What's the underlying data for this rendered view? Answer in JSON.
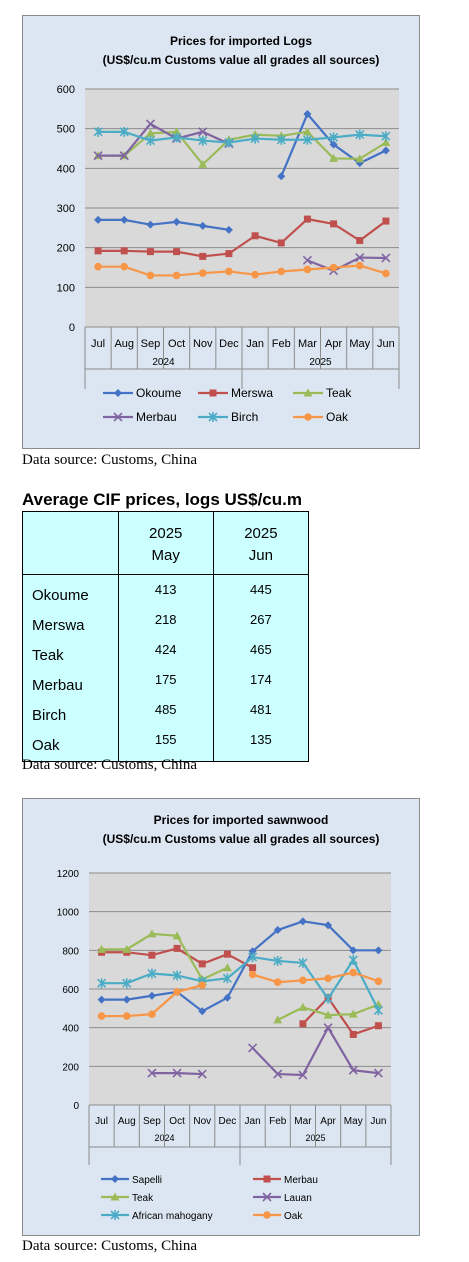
{
  "logs_chart": {
    "title_line1": "Prices for imported Logs",
    "title_line2": "(US$/cu.m Customs value all grades all sources)",
    "months": [
      "Jul",
      "Aug",
      "Sep",
      "Oct",
      "Nov",
      "Dec",
      "Jan",
      "Feb",
      "Mar",
      "Apr",
      "May",
      "Jun"
    ],
    "years": [
      "2024",
      "2025"
    ],
    "y_ticks": [
      "0",
      "100",
      "200",
      "300",
      "400",
      "500",
      "600"
    ]
  },
  "sawn_chart": {
    "title_line1": "Prices for imported sawnwood",
    "title_line2": "(US$/cu.m Customs value all grades all sources)",
    "months": [
      "Jul",
      "Aug",
      "Sep",
      "Oct",
      "Nov",
      "Dec",
      "Jan",
      "Feb",
      "Mar",
      "Apr",
      "May",
      "Jun"
    ],
    "years": [
      "2024",
      "2025"
    ],
    "y_ticks": [
      "0",
      "200",
      "400",
      "600",
      "800",
      "1000",
      "1200"
    ]
  },
  "source_1": "Data source: Customs, China",
  "source_2": "Data source: Customs, China",
  "source_3": "Data source: Customs, China",
  "table": {
    "title": "Average CIF prices, logs US$/cu.m",
    "headers": [
      {
        "year": "2025",
        "month": "May"
      },
      {
        "year": "2025",
        "month": "Jun"
      }
    ],
    "rows": [
      {
        "species": "Okoume",
        "may": "413",
        "jun": "445"
      },
      {
        "species": "Merswa",
        "may": "218",
        "jun": "267"
      },
      {
        "species": "Teak",
        "may": "424",
        "jun": "465"
      },
      {
        "species": "Merbau",
        "may": "175",
        "jun": "174"
      },
      {
        "species": "Birch",
        "may": "485",
        "jun": "481"
      },
      {
        "species": "Oak",
        "may": "155",
        "jun": "135"
      }
    ]
  },
  "chart_data": [
    {
      "type": "line",
      "title": "Prices for imported Logs (US$/cu.m Customs value all grades all sources)",
      "x": [
        "Jul 2024",
        "Aug 2024",
        "Sep 2024",
        "Oct 2024",
        "Nov 2024",
        "Dec 2024",
        "Jan 2025",
        "Feb 2025",
        "Mar 2025",
        "Apr 2025",
        "May 2025",
        "Jun 2025"
      ],
      "ylim": [
        0,
        600
      ],
      "grid": true,
      "legend": "bottom",
      "series": [
        {
          "name": "Okoume",
          "color": "#4472c4",
          "marker": "diamond",
          "values": [
            270,
            270,
            258,
            265,
            255,
            245,
            null,
            380,
            537,
            460,
            413,
            445
          ]
        },
        {
          "name": "Merswa",
          "color": "#c0504d",
          "marker": "square",
          "values": [
            192,
            192,
            190,
            190,
            178,
            185,
            230,
            212,
            272,
            260,
            218,
            267
          ]
        },
        {
          "name": "Teak",
          "color": "#9bbb59",
          "marker": "triangle",
          "values": [
            432,
            432,
            488,
            492,
            410,
            472,
            485,
            482,
            492,
            425,
            424,
            465
          ]
        },
        {
          "name": "Merbau",
          "color": "#8064a2",
          "marker": "x",
          "values": [
            432,
            432,
            512,
            475,
            492,
            462,
            null,
            null,
            168,
            142,
            175,
            174
          ]
        },
        {
          "name": "Birch",
          "color": "#4bacc6",
          "marker": "star",
          "values": [
            492,
            492,
            470,
            478,
            470,
            465,
            475,
            472,
            472,
            478,
            485,
            481
          ]
        },
        {
          "name": "Oak",
          "color": "#f79646",
          "marker": "circle",
          "values": [
            152,
            152,
            130,
            130,
            136,
            140,
            132,
            140,
            145,
            150,
            155,
            135
          ]
        }
      ]
    },
    {
      "type": "line",
      "title": "Prices for imported sawnwood (US$/cu.m Customs value all grades all sources)",
      "x": [
        "Jul 2024",
        "Aug 2024",
        "Sep 2024",
        "Oct 2024",
        "Nov 2024",
        "Dec 2024",
        "Jan 2025",
        "Feb 2025",
        "Mar 2025",
        "Apr 2025",
        "May 2025",
        "Jun 2025"
      ],
      "ylim": [
        0,
        1200
      ],
      "grid": true,
      "legend": "bottom",
      "series": [
        {
          "name": "Sapelli",
          "color": "#4472c4",
          "marker": "diamond",
          "values": [
            545,
            545,
            565,
            585,
            485,
            555,
            795,
            905,
            950,
            930,
            800,
            800
          ]
        },
        {
          "name": "Merbau",
          "color": "#c0504d",
          "marker": "square",
          "values": [
            790,
            790,
            775,
            810,
            730,
            780,
            710,
            null,
            420,
            555,
            365,
            410
          ]
        },
        {
          "name": "Teak",
          "color": "#9bbb59",
          "marker": "triangle",
          "values": [
            805,
            805,
            885,
            875,
            650,
            710,
            null,
            440,
            505,
            465,
            470,
            520
          ]
        },
        {
          "name": "Lauan",
          "color": "#8064a2",
          "marker": "x",
          "values": [
            null,
            null,
            165,
            165,
            160,
            null,
            295,
            160,
            155,
            400,
            180,
            165
          ]
        },
        {
          "name": "African mahogany",
          "color": "#4bacc6",
          "marker": "star",
          "values": [
            630,
            630,
            680,
            670,
            640,
            655,
            765,
            745,
            735,
            550,
            750,
            490
          ]
        },
        {
          "name": "Oak",
          "color": "#f79646",
          "marker": "circle",
          "values": [
            460,
            460,
            470,
            585,
            620,
            null,
            675,
            635,
            645,
            655,
            685,
            640
          ]
        }
      ]
    }
  ]
}
